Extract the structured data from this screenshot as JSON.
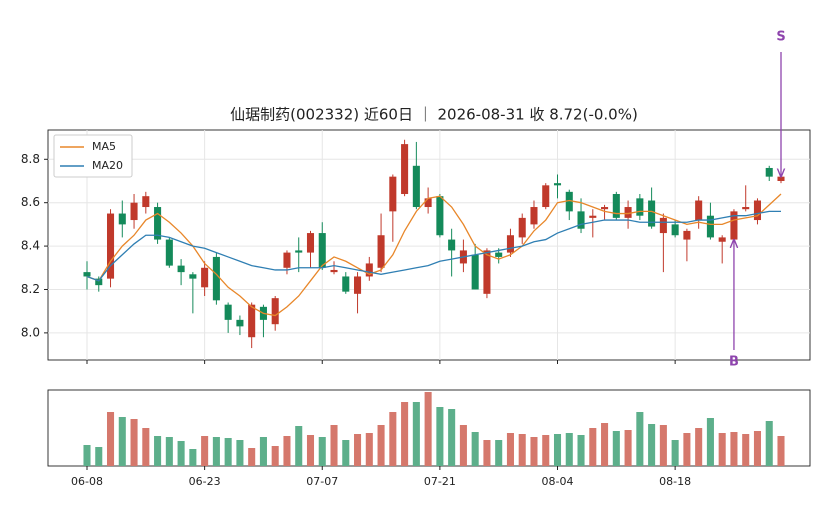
{
  "chart_data": {
    "type": "candlestick",
    "title": "仙琚制药(002332) 近60日 ｜ 2026-08-31 收 8.72(-0.0%)",
    "categories": [
      "06-08",
      null,
      null,
      null,
      null,
      null,
      null,
      null,
      null,
      null,
      "06-23",
      null,
      null,
      null,
      null,
      null,
      null,
      null,
      null,
      null,
      "07-07",
      null,
      null,
      null,
      null,
      null,
      null,
      null,
      null,
      null,
      "07-21",
      null,
      null,
      null,
      null,
      null,
      null,
      null,
      null,
      null,
      "08-04",
      null,
      null,
      null,
      null,
      null,
      null,
      null,
      null,
      null,
      "08-18",
      null,
      null,
      null,
      null,
      null,
      null,
      null,
      null,
      null
    ],
    "open": [
      8.28,
      8.25,
      8.25,
      8.55,
      8.52,
      8.58,
      8.58,
      8.43,
      8.31,
      8.27,
      8.21,
      8.35,
      8.13,
      8.06,
      7.98,
      8.12,
      8.04,
      8.3,
      8.38,
      8.37,
      8.46,
      8.28,
      8.26,
      8.18,
      8.26,
      8.3,
      8.56,
      8.64,
      8.77,
      8.58,
      8.63,
      8.43,
      8.32,
      8.36,
      8.18,
      8.37,
      8.37,
      8.44,
      8.5,
      8.58,
      8.69,
      8.65,
      8.56,
      8.53,
      8.57,
      8.64,
      8.53,
      8.62,
      8.61,
      8.46,
      8.5,
      8.43,
      8.52,
      8.54,
      8.42,
      8.43,
      8.57,
      8.52,
      8.76,
      8.7
    ],
    "high": [
      8.33,
      8.26,
      8.57,
      8.61,
      8.64,
      8.65,
      8.6,
      8.44,
      8.34,
      8.28,
      8.33,
      8.37,
      8.14,
      8.08,
      8.14,
      8.13,
      8.17,
      8.38,
      8.44,
      8.47,
      8.51,
      8.33,
      8.28,
      8.28,
      8.35,
      8.55,
      8.73,
      8.89,
      8.88,
      8.67,
      8.64,
      8.48,
      8.43,
      8.41,
      8.39,
      8.39,
      8.48,
      8.55,
      8.61,
      8.69,
      8.73,
      8.66,
      8.62,
      8.57,
      8.59,
      8.65,
      8.61,
      8.64,
      8.67,
      8.55,
      8.52,
      8.48,
      8.63,
      8.6,
      8.45,
      8.57,
      8.68,
      8.62,
      8.77,
      8.73
    ],
    "low": [
      8.2,
      8.19,
      8.21,
      8.44,
      8.48,
      8.55,
      8.41,
      8.3,
      8.22,
      8.09,
      8.17,
      8.13,
      8.0,
      7.99,
      7.93,
      7.98,
      8.01,
      8.27,
      8.28,
      8.3,
      8.29,
      8.27,
      8.18,
      8.09,
      8.24,
      8.28,
      8.42,
      8.63,
      8.57,
      8.55,
      8.44,
      8.26,
      8.28,
      8.2,
      8.16,
      8.32,
      8.35,
      8.41,
      8.48,
      8.57,
      8.62,
      8.52,
      8.46,
      8.44,
      8.52,
      8.52,
      8.48,
      8.52,
      8.48,
      8.28,
      8.44,
      8.33,
      8.48,
      8.43,
      8.32,
      8.42,
      8.56,
      8.5,
      8.7,
      8.69
    ],
    "close": [
      8.26,
      8.22,
      8.55,
      8.5,
      8.6,
      8.63,
      8.43,
      8.31,
      8.28,
      8.25,
      8.3,
      8.15,
      8.06,
      8.03,
      8.13,
      8.06,
      8.16,
      8.37,
      8.37,
      8.46,
      8.3,
      8.29,
      8.19,
      8.26,
      8.32,
      8.45,
      8.72,
      8.87,
      8.58,
      8.62,
      8.45,
      8.38,
      8.38,
      8.2,
      8.38,
      8.35,
      8.45,
      8.53,
      8.58,
      8.68,
      8.68,
      8.56,
      8.48,
      8.54,
      8.58,
      8.53,
      8.58,
      8.54,
      8.49,
      8.53,
      8.45,
      8.47,
      8.61,
      8.44,
      8.44,
      8.56,
      8.58,
      8.61,
      8.72,
      8.72
    ],
    "up_color": "#c0392b",
    "down_color": "#148a5a",
    "series": [
      {
        "name": "MA5",
        "color": "#e8872a",
        "values": [
          8.26,
          8.24,
          8.33,
          8.4,
          8.45,
          8.52,
          8.55,
          8.51,
          8.46,
          8.4,
          8.32,
          8.27,
          8.21,
          8.17,
          8.12,
          8.09,
          8.08,
          8.12,
          8.17,
          8.24,
          8.31,
          8.35,
          8.33,
          8.3,
          8.27,
          8.29,
          8.36,
          8.47,
          8.56,
          8.62,
          8.63,
          8.58,
          8.5,
          8.4,
          8.36,
          8.34,
          8.36,
          8.4,
          8.47,
          8.52,
          8.6,
          8.61,
          8.6,
          8.58,
          8.56,
          8.55,
          8.55,
          8.56,
          8.56,
          8.54,
          8.52,
          8.5,
          8.51,
          8.5,
          8.5,
          8.52,
          8.53,
          8.54,
          8.59,
          8.64
        ]
      },
      {
        "name": "MA20",
        "color": "#2f7fb3",
        "values": [
          8.26,
          8.24,
          8.31,
          8.36,
          8.41,
          8.45,
          8.45,
          8.44,
          8.42,
          8.4,
          8.39,
          8.37,
          8.35,
          8.33,
          8.31,
          8.3,
          8.29,
          8.29,
          8.3,
          8.3,
          8.3,
          8.31,
          8.3,
          8.29,
          8.28,
          8.27,
          8.28,
          8.29,
          8.3,
          8.31,
          8.33,
          8.34,
          8.35,
          8.36,
          8.37,
          8.38,
          8.39,
          8.4,
          8.42,
          8.43,
          8.46,
          8.48,
          8.5,
          8.51,
          8.52,
          8.52,
          8.52,
          8.51,
          8.51,
          8.51,
          8.51,
          8.51,
          8.52,
          8.52,
          8.53,
          8.54,
          8.54,
          8.55,
          8.56,
          8.56
        ]
      }
    ],
    "ylim": [
      7.875,
      8.935
    ],
    "yticks": [
      {
        "value": 8.0,
        "label": "8.0"
      },
      8.2,
      8.4,
      8.6,
      8.8
    ],
    "grid": true,
    "legend": "upper left",
    "volume": [
      21,
      19,
      54,
      49,
      47,
      38,
      30,
      29,
      25,
      17,
      30,
      29,
      28,
      26,
      18,
      29,
      20,
      30,
      40,
      31,
      29,
      41,
      26,
      32,
      33,
      41,
      54,
      64,
      64,
      74,
      59,
      57,
      41,
      34,
      26,
      26,
      33,
      32,
      29,
      31,
      32,
      33,
      31,
      38,
      43,
      35,
      36,
      54,
      42,
      41,
      26,
      33,
      38,
      48,
      33,
      34,
      32,
      35,
      45,
      30
    ],
    "volume_ylim": [
      0,
      76
    ],
    "volume_up_color": "#d5786c",
    "volume_down_color": "#5daf8b",
    "annotations": [
      {
        "text": "B",
        "index": 55,
        "color": "#8e44ad"
      },
      {
        "text": "S",
        "index": 59,
        "color": "#8e44ad"
      }
    ]
  }
}
